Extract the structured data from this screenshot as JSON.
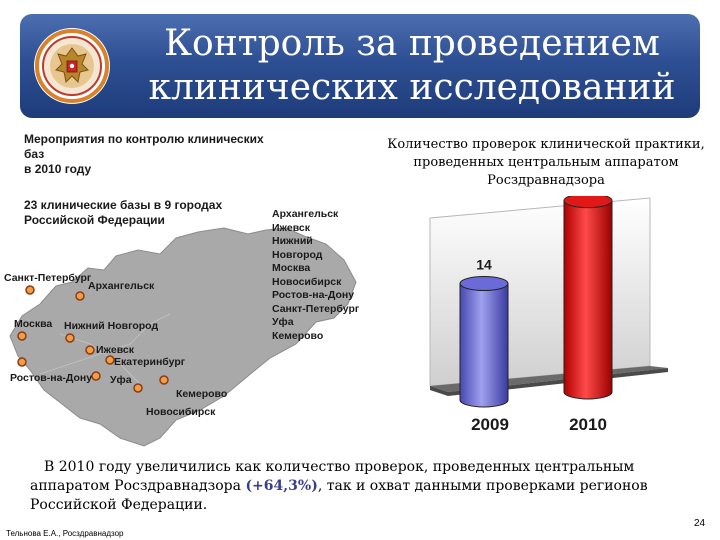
{
  "header": {
    "title_line1": "Контроль за проведением",
    "title_line2": "клинических исследований",
    "background_color": "#2e4f93",
    "emblem": "russian-coat-of-arms-icon"
  },
  "left": {
    "heading_line1": "Мероприятия по контролю клинических баз",
    "heading_line2": "в 2010 году",
    "sub_line1": "23 клинические базы в 9 городах",
    "sub_line2": "Российской Федерации",
    "city_list": [
      "Архангельск",
      "Ижевск",
      "Нижний",
      "Новгород",
      "Москва",
      "Новосибирск",
      "Ростов-на-Дону",
      "Санкт-Петербург",
      "Уфа",
      "Кемерово"
    ],
    "map_labels": {
      "spb": "Санкт-Петербург",
      "arkhangelsk": "Архангельск",
      "moscow": "Москва",
      "nn": "Нижний Новгород",
      "izhevsk": "Ижевск",
      "ekb": "Екатеринбург",
      "rostov": "Ростов-на-Дону",
      "ufa": "Уфа",
      "kemerovo": "Кемерово",
      "novosibirsk": "Новосибирск"
    }
  },
  "chart_data": {
    "type": "bar",
    "title": "Количество проверок клинической практики, проведенных центральным аппаратом Росздравнадзора",
    "categories": [
      "2009",
      "2010"
    ],
    "values": [
      14,
      23
    ],
    "colors": [
      "#6a6ad8",
      "#e01818"
    ],
    "ylim": [
      0,
      25
    ],
    "grid": false,
    "legend": "none",
    "style": "3d-cylinder"
  },
  "bottom": {
    "text_before": "В 2010 году увеличились как количество проверок, проведенных центральным аппаратом Росздравнадзора ",
    "highlight": "(+64,3%)",
    "text_after": ", так и охват данными проверками регионов Российской Федерации."
  },
  "footer": {
    "author": "Тельнова Е.А., Росздравнадзор",
    "page_number": "24"
  }
}
